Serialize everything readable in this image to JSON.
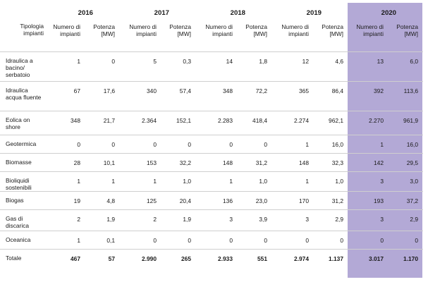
{
  "years": [
    "2016",
    "2017",
    "2018",
    "2019",
    "2020"
  ],
  "header": {
    "category": "Tipologia impianti",
    "count": "Numero di impianti",
    "power": "Potenza [MW]"
  },
  "rows": [
    {
      "label": "Idraulica a bacino/ serbatoio",
      "values": [
        "1",
        "0",
        "5",
        "0,3",
        "14",
        "1,8",
        "12",
        "4,6",
        "13",
        "6,0"
      ]
    },
    {
      "label": "Idraulica acqua fluente",
      "values": [
        "67",
        "17,6",
        "340",
        "57,4",
        "348",
        "72,2",
        "365",
        "86,4",
        "392",
        "113,6"
      ]
    },
    {
      "label": "Eolica on shore",
      "values": [
        "348",
        "21,7",
        "2.364",
        "152,1",
        "2.283",
        "418,4",
        "2.274",
        "962,1",
        "2.270",
        "961,9"
      ]
    },
    {
      "label": "Geotermica",
      "values": [
        "0",
        "0",
        "0",
        "0",
        "0",
        "0",
        "1",
        "16,0",
        "1",
        "16,0"
      ]
    },
    {
      "label": "Biomasse",
      "values": [
        "28",
        "10,1",
        "153",
        "32,2",
        "148",
        "31,2",
        "148",
        "32,3",
        "142",
        "29,5"
      ]
    },
    {
      "label": "Bioliquidi sostenibili",
      "values": [
        "1",
        "1",
        "1",
        "1,0",
        "1",
        "1,0",
        "1",
        "1,0",
        "3",
        "3,0"
      ]
    },
    {
      "label": "Biogas",
      "values": [
        "19",
        "4,8",
        "125",
        "20,4",
        "136",
        "23,0",
        "170",
        "31,2",
        "193",
        "37,2"
      ]
    },
    {
      "label": "Gas di discarica",
      "values": [
        "2",
        "1,9",
        "2",
        "1,9",
        "3",
        "3,9",
        "3",
        "2,9",
        "3",
        "2,9"
      ]
    },
    {
      "label": "Oceanica",
      "values": [
        "1",
        "0,1",
        "0",
        "0",
        "0",
        "0",
        "0",
        "0",
        "0",
        "0"
      ]
    },
    {
      "label": "Totale",
      "values": [
        "467",
        "57",
        "2.990",
        "265",
        "2.933",
        "551",
        "2.974",
        "1.137",
        "3.017",
        "1.170"
      ]
    }
  ]
}
